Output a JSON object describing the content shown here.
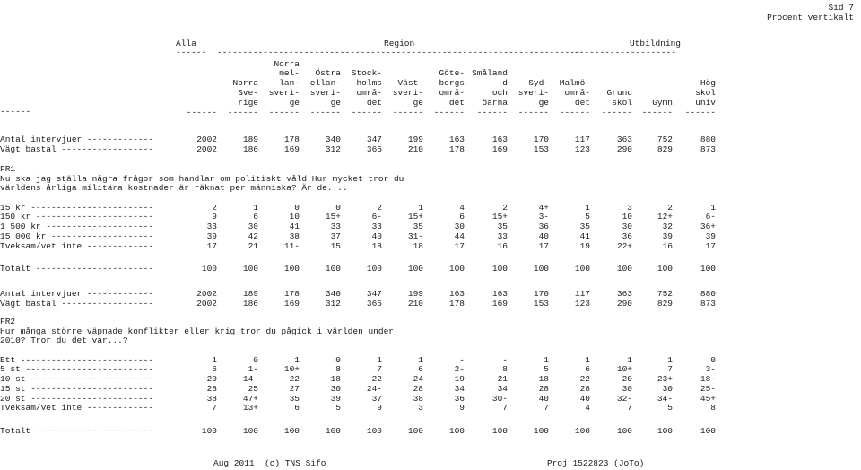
{
  "page": {
    "sid": "Sid 7",
    "subtitle": "Procent vertikalt"
  },
  "groups": {
    "alla": "Alla",
    "region": "Region",
    "utbildning": "Utbildning",
    "rule_alla": "------",
    "rule_region": "-----------------------------------------------------------------------",
    "rule_utb": "--------------------"
  },
  "columns": [
    [
      "",
      "",
      "",
      "",
      ""
    ],
    [
      "",
      "",
      "Norra",
      "Sve-",
      "rige"
    ],
    [
      "Norra",
      "mel-",
      "lan-",
      "sveri-",
      "ge"
    ],
    [
      "",
      "Östra",
      "ellan-",
      "sveri-",
      "ge"
    ],
    [
      "",
      "Stock-",
      "holms",
      "områ-",
      "det"
    ],
    [
      "",
      "",
      "Väst-",
      "sveri-",
      "ge"
    ],
    [
      "",
      "Göte-",
      "borgs",
      "områ-",
      "det"
    ],
    [
      "",
      "Småland",
      "d",
      "och",
      "öarna"
    ],
    [
      "",
      "",
      "Syd-",
      "sveri-",
      "ge"
    ],
    [
      "",
      "",
      "Malmö-",
      "områ-",
      "det"
    ],
    [
      "",
      "",
      "",
      "Grund",
      "skol"
    ],
    [
      "",
      "",
      "",
      "",
      "Gymn"
    ],
    [
      "",
      "",
      "Hög",
      "skol",
      "univ"
    ]
  ],
  "rules": [
    "------",
    "------",
    "------",
    "------",
    "------",
    "------",
    "------",
    "------",
    "------",
    "------",
    "------",
    "------",
    "------"
  ],
  "sections": [
    {
      "rows": [
        {
          "label": "Antal intervjuer -------------",
          "values": [
            "2002",
            "189",
            "178",
            "340",
            "347",
            "199",
            "163",
            "163",
            "170",
            "117",
            "363",
            "752",
            "880"
          ]
        },
        {
          "label": "Vägt bastal ------------------",
          "values": [
            "2002",
            "186",
            "169",
            "312",
            "365",
            "210",
            "178",
            "169",
            "153",
            "123",
            "290",
            "829",
            "873"
          ]
        }
      ]
    },
    {
      "code": "FR1",
      "question_lines": [
        "Nu ska jag ställa några frågor som handlar om politiskt våld Hur mycket tror du",
        "världens årliga militära kostnader är räknat per människa? Är de...."
      ],
      "rows": [
        {
          "label": "15 kr ------------------------",
          "values": [
            "2",
            "1",
            "0",
            "0",
            "2",
            "1",
            "4",
            "2",
            "4+",
            "1",
            "3",
            "2",
            "1"
          ]
        },
        {
          "label": "150 kr -----------------------",
          "values": [
            "9",
            "6",
            "10",
            "15+",
            "6-",
            "15+",
            "6",
            "15+",
            "3-",
            "5",
            "10",
            "12+",
            "6-"
          ]
        },
        {
          "label": "1 500 kr ---------------------",
          "values": [
            "33",
            "30",
            "41",
            "33",
            "33",
            "35",
            "30",
            "35",
            "36",
            "35",
            "30",
            "32",
            "36+"
          ]
        },
        {
          "label": "15 000 kr --------------------",
          "values": [
            "39",
            "42",
            "38",
            "37",
            "40",
            "31-",
            "44",
            "33",
            "40",
            "41",
            "36",
            "39",
            "39"
          ]
        },
        {
          "label": "Tveksam/vet inte -------------",
          "values": [
            "17",
            "21",
            "11-",
            "15",
            "18",
            "18",
            "17",
            "16",
            "17",
            "19",
            "22+",
            "16",
            "17"
          ]
        },
        {
          "label": "Totalt -----------------------",
          "values": [
            "100",
            "100",
            "100",
            "100",
            "100",
            "100",
            "100",
            "100",
            "100",
            "100",
            "100",
            "100",
            "100"
          ],
          "gap": true
        }
      ]
    },
    {
      "rows": [
        {
          "label": "Antal intervjuer -------------",
          "values": [
            "2002",
            "189",
            "178",
            "340",
            "347",
            "199",
            "163",
            "163",
            "170",
            "117",
            "363",
            "752",
            "880"
          ]
        },
        {
          "label": "Vägt bastal ------------------",
          "values": [
            "2002",
            "186",
            "169",
            "312",
            "365",
            "210",
            "178",
            "169",
            "153",
            "123",
            "290",
            "829",
            "873"
          ]
        }
      ]
    },
    {
      "code": "FR2",
      "question_lines": [
        "Hur många större väpnade konflikter eller krig tror du pågick i världen under",
        "2010? Tror du det var...?"
      ],
      "rows": [
        {
          "label": "Ett --------------------------",
          "values": [
            "1",
            "0",
            "1",
            "0",
            "1",
            "1",
            "-",
            "-",
            "1",
            "1",
            "1",
            "1",
            "0"
          ]
        },
        {
          "label": "5 st -------------------------",
          "values": [
            "6",
            "1-",
            "10+",
            "8",
            "7",
            "6",
            "2-",
            "8",
            "5",
            "6",
            "10+",
            "7",
            "3-"
          ]
        },
        {
          "label": "10 st ------------------------",
          "values": [
            "20",
            "14-",
            "22",
            "18",
            "22",
            "24",
            "19",
            "21",
            "18",
            "22",
            "20",
            "23+",
            "18-"
          ]
        },
        {
          "label": "15 st ------------------------",
          "values": [
            "28",
            "25",
            "27",
            "30",
            "24-",
            "28",
            "34",
            "34",
            "28",
            "28",
            "30",
            "30",
            "25-"
          ]
        },
        {
          "label": "20 st ------------------------",
          "values": [
            "38",
            "47+",
            "35",
            "39",
            "37",
            "38",
            "36",
            "30-",
            "40",
            "40",
            "32-",
            "34-",
            "45+"
          ]
        },
        {
          "label": "Tveksam/vet inte -------------",
          "values": [
            "7",
            "13+",
            "6",
            "5",
            "9",
            "3",
            "9",
            "7",
            "7",
            "4",
            "7",
            "5",
            "8"
          ]
        },
        {
          "label": "Totalt -----------------------",
          "values": [
            "100",
            "100",
            "100",
            "100",
            "100",
            "100",
            "100",
            "100",
            "100",
            "100",
            "100",
            "100",
            "100"
          ],
          "gap": true
        }
      ]
    }
  ],
  "footer": {
    "left": "Aug 2011  (c) TNS Sifo",
    "right": "Proj 1522823 (JoTo)"
  }
}
